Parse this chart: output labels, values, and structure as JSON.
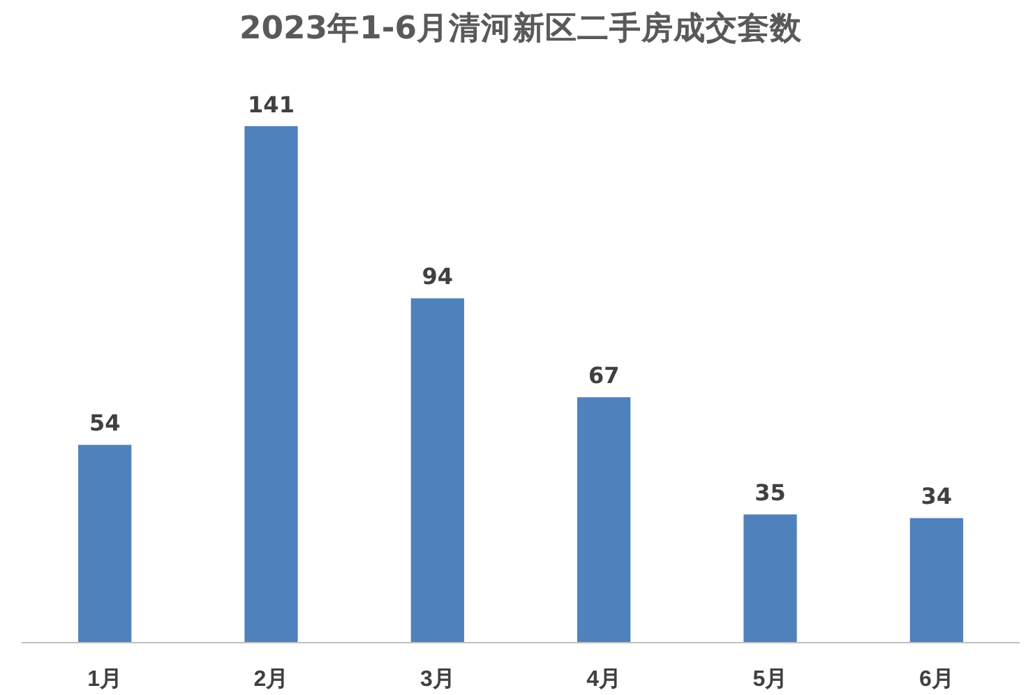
{
  "chart_data": {
    "type": "bar",
    "title": "2023年1-6月清河新区二手房成交套数",
    "categories": [
      "1月",
      "2月",
      "3月",
      "4月",
      "5月",
      "6月"
    ],
    "values": [
      54,
      141,
      94,
      67,
      35,
      34
    ],
    "color": "#4f81bd",
    "data_labels": true
  }
}
